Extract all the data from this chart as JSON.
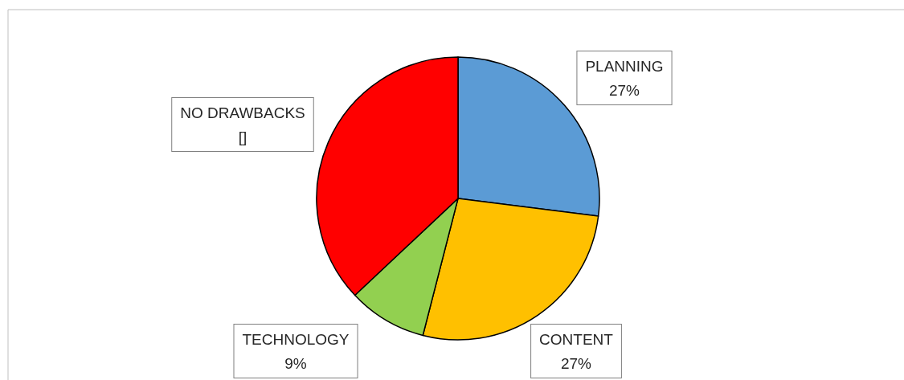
{
  "chart_data": {
    "type": "pie",
    "categories": [
      "PLANNING",
      "CONTENT",
      "TECHNOLOGY",
      "NO DRAWBACKS"
    ],
    "values": [
      27,
      27,
      9,
      37
    ],
    "colors": [
      "#5b9bd5",
      "#ffc000",
      "#92d050",
      "#ff0000"
    ],
    "value_labels": [
      "27%",
      "27%",
      "9%",
      "[]"
    ]
  }
}
